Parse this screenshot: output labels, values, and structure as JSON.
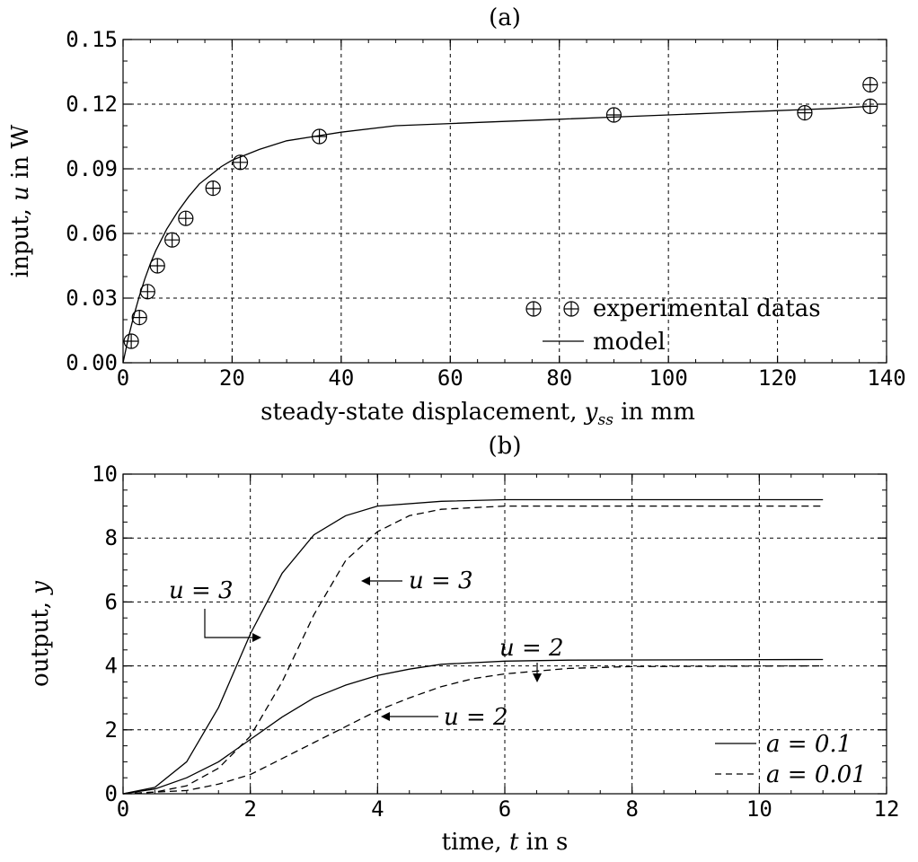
{
  "chart_data": [
    {
      "panel_label": "(a)",
      "type": "scatter",
      "xlabel_main": "steady-state displacement, ",
      "xlabel_var": "y",
      "xlabel_sub": "ss",
      "xlabel_unit": " in mm",
      "ylabel_main": "input, ",
      "ylabel_var": "u",
      "ylabel_unit": " in W",
      "xlim": [
        0,
        140
      ],
      "ylim": [
        0,
        0.15
      ],
      "xticks": [
        "0",
        "20",
        "40",
        "60",
        "80",
        "100",
        "120",
        "140"
      ],
      "yticks": [
        "0.00",
        "0.03",
        "0.06",
        "0.09",
        "0.12",
        "0.15"
      ],
      "grid": true,
      "legend_position": "bottom-right",
      "legend": [
        "experimental datas",
        "model"
      ],
      "series": [
        {
          "name": "experimental datas",
          "style": "circled-plus markers",
          "points": [
            [
              1.5,
              0.01
            ],
            [
              3,
              0.021
            ],
            [
              4.5,
              0.033
            ],
            [
              6.3,
              0.045
            ],
            [
              9,
              0.057
            ],
            [
              11.5,
              0.067
            ],
            [
              16.5,
              0.081
            ],
            [
              21.5,
              0.093
            ],
            [
              36,
              0.105
            ],
            [
              90,
              0.115
            ],
            [
              125,
              0.116
            ],
            [
              137,
              0.119
            ],
            [
              137,
              0.129
            ]
          ]
        },
        {
          "name": "model",
          "style": "solid line",
          "points": [
            [
              0,
              0.0
            ],
            [
              1,
              0.012
            ],
            [
              2,
              0.022
            ],
            [
              3,
              0.031
            ],
            [
              4,
              0.039
            ],
            [
              5,
              0.046
            ],
            [
              6,
              0.052
            ],
            [
              7,
              0.057
            ],
            [
              8,
              0.062
            ],
            [
              10,
              0.07
            ],
            [
              12,
              0.077
            ],
            [
              14,
              0.083
            ],
            [
              16,
              0.087
            ],
            [
              18,
              0.091
            ],
            [
              20,
              0.094
            ],
            [
              22,
              0.096
            ],
            [
              25,
              0.099
            ],
            [
              30,
              0.103
            ],
            [
              35,
              0.105
            ],
            [
              40,
              0.107
            ],
            [
              50,
              0.11
            ],
            [
              60,
              0.111
            ],
            [
              70,
              0.112
            ],
            [
              80,
              0.113
            ],
            [
              90,
              0.114
            ],
            [
              100,
              0.115
            ],
            [
              110,
              0.116
            ],
            [
              120,
              0.117
            ],
            [
              130,
              0.118
            ],
            [
              137,
              0.119
            ]
          ]
        }
      ]
    },
    {
      "panel_label": "(b)",
      "type": "line",
      "xlabel_main": "time, ",
      "xlabel_var": "t",
      "xlabel_unit": " in s",
      "ylabel_main": "output, ",
      "ylabel_var": "y",
      "xlim": [
        0,
        12
      ],
      "ylim": [
        0,
        10
      ],
      "xticks": [
        "0",
        "2",
        "4",
        "6",
        "8",
        "10",
        "12"
      ],
      "yticks": [
        "0",
        "2",
        "4",
        "6",
        "8",
        "10"
      ],
      "grid": true,
      "legend_position": "bottom-right",
      "legend": [
        "a = 0.1",
        "a = 0.01"
      ],
      "annotations": [
        "u = 3",
        "u = 3",
        "u = 2",
        "u = 2"
      ],
      "series": [
        {
          "name": "a = 0.1",
          "input": "u = 3",
          "style": "solid",
          "points": [
            [
              0,
              0
            ],
            [
              0.5,
              0.2
            ],
            [
              1,
              1.0
            ],
            [
              1.5,
              2.7
            ],
            [
              2,
              5.0
            ],
            [
              2.5,
              6.9
            ],
            [
              3,
              8.1
            ],
            [
              3.5,
              8.7
            ],
            [
              4,
              9.0
            ],
            [
              5,
              9.15
            ],
            [
              6,
              9.2
            ],
            [
              8,
              9.2
            ],
            [
              11,
              9.2
            ]
          ]
        },
        {
          "name": "a = 0.01",
          "input": "u = 3",
          "style": "dashed",
          "points": [
            [
              0,
              0
            ],
            [
              0.5,
              0.05
            ],
            [
              1,
              0.25
            ],
            [
              1.5,
              0.8
            ],
            [
              2,
              1.8
            ],
            [
              2.5,
              3.5
            ],
            [
              3,
              5.6
            ],
            [
              3.5,
              7.3
            ],
            [
              4,
              8.2
            ],
            [
              4.5,
              8.7
            ],
            [
              5,
              8.9
            ],
            [
              6,
              9.0
            ],
            [
              8,
              9.0
            ],
            [
              11,
              9.0
            ]
          ]
        },
        {
          "name": "a = 0.1",
          "input": "u = 2",
          "style": "solid",
          "points": [
            [
              0,
              0
            ],
            [
              0.5,
              0.15
            ],
            [
              1,
              0.5
            ],
            [
              1.5,
              1.0
            ],
            [
              2,
              1.7
            ],
            [
              2.5,
              2.4
            ],
            [
              3,
              3.0
            ],
            [
              3.5,
              3.4
            ],
            [
              4,
              3.7
            ],
            [
              4.5,
              3.9
            ],
            [
              5,
              4.05
            ],
            [
              6,
              4.15
            ],
            [
              7,
              4.18
            ],
            [
              11,
              4.2
            ]
          ]
        },
        {
          "name": "a = 0.01",
          "input": "u = 2",
          "style": "dashed",
          "points": [
            [
              0,
              0
            ],
            [
              1,
              0.1
            ],
            [
              1.5,
              0.3
            ],
            [
              2,
              0.6
            ],
            [
              2.5,
              1.1
            ],
            [
              3,
              1.6
            ],
            [
              3.5,
              2.1
            ],
            [
              4,
              2.6
            ],
            [
              4.5,
              3.0
            ],
            [
              5,
              3.35
            ],
            [
              5.5,
              3.6
            ],
            [
              6,
              3.75
            ],
            [
              7,
              3.92
            ],
            [
              8,
              3.98
            ],
            [
              11,
              4.0
            ]
          ]
        }
      ]
    }
  ]
}
